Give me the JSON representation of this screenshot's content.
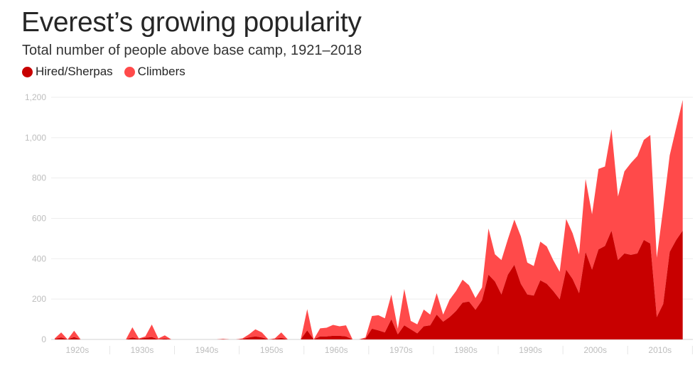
{
  "chart_data": {
    "type": "area",
    "stacked": true,
    "title": "Everest’s growing popularity",
    "subtitle": "Total number of people above base camp, 1921–2018",
    "xlabel": "",
    "ylabel": "",
    "xlim": [
      1921,
      2018
    ],
    "ylim": [
      0,
      1200
    ],
    "y_ticks": [
      "0",
      "200",
      "400",
      "600",
      "800",
      "1,000",
      "1,200"
    ],
    "y_tick_values": [
      0,
      200,
      400,
      600,
      800,
      1000,
      1200
    ],
    "x_tick_labels": [
      "1920s",
      "1930s",
      "1940s",
      "1950s",
      "1960s",
      "1970s",
      "1980s",
      "1990s",
      "2000s",
      "2010s"
    ],
    "x_tick_decades": [
      1920,
      1930,
      1940,
      1950,
      1960,
      1970,
      1980,
      1990,
      2000,
      2010
    ],
    "grid": true,
    "legend_placement": "top-left",
    "x_start_year": 1921,
    "series": [
      {
        "name": "Hired/Sherpas",
        "color": "#c80000",
        "values": [
          2,
          10,
          0,
          12,
          0,
          0,
          0,
          0,
          0,
          0,
          0,
          0,
          10,
          2,
          8,
          12,
          0,
          5,
          0,
          0,
          0,
          0,
          0,
          0,
          0,
          0,
          1,
          0,
          0,
          2,
          10,
          15,
          10,
          0,
          2,
          8,
          0,
          0,
          0,
          45,
          0,
          15,
          15,
          18,
          18,
          15,
          0,
          0,
          4,
          53,
          45,
          35,
          100,
          25,
          70,
          50,
          30,
          65,
          70,
          123,
          88,
          111,
          141,
          182,
          188,
          147,
          194,
          321,
          287,
          223,
          321,
          370,
          276,
          223,
          217,
          293,
          276,
          240,
          199,
          346,
          299,
          229,
          434,
          346,
          446,
          463,
          539,
          393,
          426,
          419,
          426,
          493,
          475,
          111,
          176,
          434,
          493,
          539
        ]
      },
      {
        "name": "Climbers",
        "color": "#ff4a4a",
        "values": [
          3,
          25,
          0,
          31,
          0,
          0,
          0,
          0,
          0,
          0,
          0,
          0,
          50,
          3,
          7,
          62,
          5,
          15,
          0,
          0,
          0,
          0,
          0,
          0,
          0,
          0,
          2,
          0,
          0,
          3,
          15,
          35,
          25,
          0,
          3,
          27,
          0,
          0,
          0,
          105,
          0,
          40,
          43,
          54,
          47,
          55,
          0,
          0,
          6,
          63,
          75,
          70,
          122,
          28,
          180,
          42,
          45,
          83,
          53,
          106,
          35,
          86,
          99,
          114,
          80,
          58,
          64,
          229,
          135,
          170,
          176,
          224,
          235,
          158,
          147,
          192,
          185,
          153,
          136,
          251,
          227,
          193,
          361,
          274,
          399,
          394,
          503,
          315,
          407,
          455,
          483,
          496,
          538,
          294,
          474,
          478,
          557,
          648
        ]
      }
    ]
  }
}
